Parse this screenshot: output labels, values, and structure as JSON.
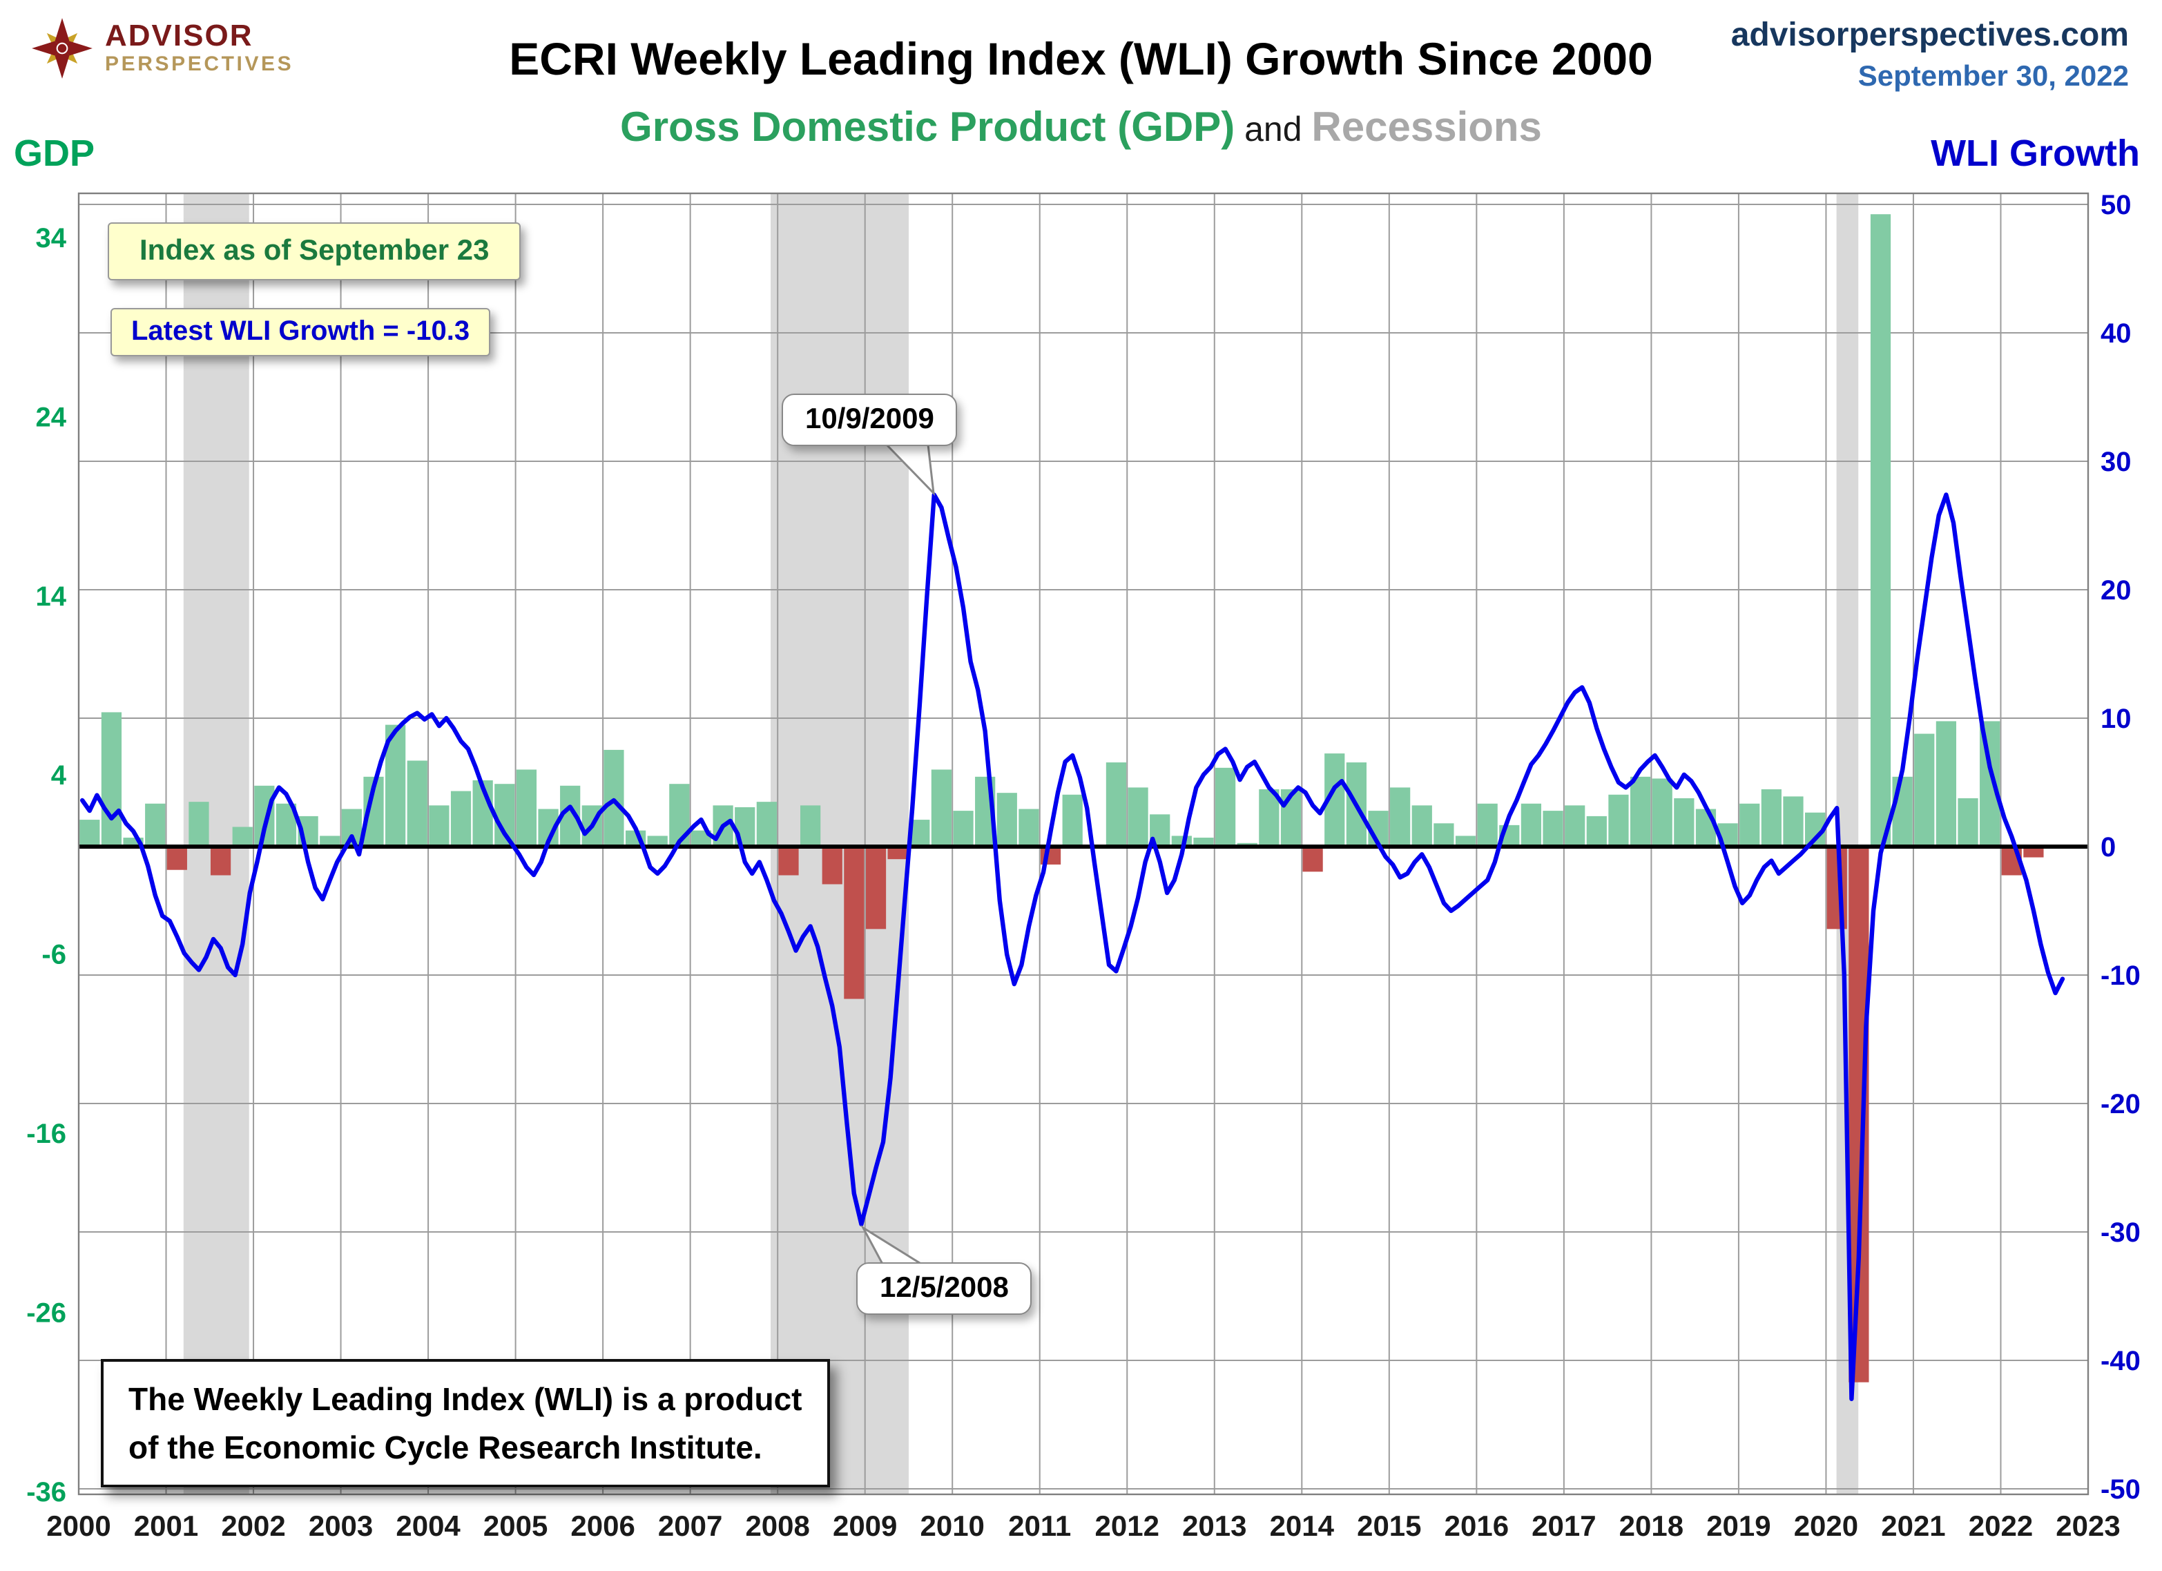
{
  "header": {
    "title": "ECRI Weekly Leading Index (WLI) Growth Since 2000",
    "subtitle_gdp": "Gross Domestic Product (GDP)",
    "subtitle_and": " and ",
    "subtitle_recessions": "Recessions",
    "site": "advisorperspectives.com",
    "date": "September 30, 2022",
    "logo_line1": "ADVISOR",
    "logo_line2": "PERSPECTIVES"
  },
  "axes": {
    "left_label": "GDP",
    "right_label": "WLI Growth",
    "gdp_ticks": [
      34,
      24,
      14,
      4,
      -6,
      -16,
      -26,
      -36
    ],
    "wli_ticks": [
      50,
      40,
      30,
      20,
      10,
      0,
      -10,
      -20,
      -30,
      -40,
      -50
    ],
    "year_ticks": [
      2000,
      2001,
      2002,
      2003,
      2004,
      2005,
      2006,
      2007,
      2008,
      2009,
      2010,
      2011,
      2012,
      2013,
      2014,
      2015,
      2016,
      2017,
      2018,
      2019,
      2020,
      2021,
      2022,
      2023
    ]
  },
  "annotations": {
    "index_note": "Index as of September 23",
    "latest_note": "Latest WLI Growth = -10.3",
    "peak_label": "10/9/2009",
    "trough_label": "12/5/2008",
    "footnote_line1": "The Weekly Leading Index (WLI) is a product",
    "footnote_line2": "of the Economic Cycle Research Institute."
  },
  "colors": {
    "gdp_green_text": "#00a25a",
    "subtitle_green": "#2ba05e",
    "recessions_gray": "#a8a8a8",
    "wli_blue_text": "#0000cc",
    "bar_green": "#82cba4",
    "bar_red": "#c0504d",
    "line_blue": "#0000ee",
    "recession_band": "#d9d9d9",
    "gridline": "#9c9c9c",
    "plot_border": "#7f7f7f",
    "zero_line": "#000000",
    "note_bg": "#ffffcc",
    "note_index_text": "#1b7a3e",
    "note_latest_text": "#0000cc",
    "year_label": "#1a1a1a"
  },
  "chart_data": {
    "type": "combo",
    "title": "ECRI Weekly Leading Index (WLI) Growth Since 2000",
    "subtitle": "Gross Domestic Product (GDP) and Recessions",
    "x_range": [
      2000,
      2023
    ],
    "left_axis": {
      "label": "GDP",
      "range": [
        -36,
        34
      ],
      "ticks": [
        34,
        24,
        14,
        4,
        -6,
        -16,
        -26,
        -36
      ]
    },
    "right_axis": {
      "label": "WLI Growth",
      "range": [
        -50,
        50
      ],
      "ticks": [
        50,
        40,
        30,
        20,
        10,
        0,
        -10,
        -20,
        -30,
        -40,
        -50
      ]
    },
    "grid": true,
    "recessions": [
      {
        "start": 2001.2,
        "end": 2001.95
      },
      {
        "start": 2007.92,
        "end": 2009.5
      },
      {
        "start": 2020.12,
        "end": 2020.37
      }
    ],
    "gdp_bars": {
      "type": "bar",
      "start_year": 2000,
      "interval_years": 0.25,
      "values": [
        1.5,
        7.5,
        0.5,
        2.4,
        -1.3,
        2.5,
        -1.6,
        1.1,
        3.4,
        2.4,
        1.7,
        0.6,
        2.1,
        3.9,
        6.8,
        4.8,
        2.3,
        3.1,
        3.7,
        3.5,
        4.3,
        2.1,
        3.4,
        2.3,
        5.4,
        0.9,
        0.6,
        3.5,
        0.9,
        2.3,
        2.2,
        2.5,
        -1.6,
        2.3,
        -2.1,
        -8.5,
        -4.6,
        -0.7,
        1.5,
        4.3,
        2.0,
        3.9,
        3.0,
        2.1,
        -1.0,
        2.9,
        -0.1,
        4.7,
        3.3,
        1.8,
        0.6,
        0.5,
        4.4,
        0.2,
        3.2,
        3.2,
        -1.4,
        5.2,
        4.7,
        2.0,
        3.3,
        2.3,
        1.3,
        0.6,
        2.4,
        1.2,
        2.4,
        2.0,
        2.3,
        1.7,
        2.9,
        3.9,
        3.8,
        2.7,
        2.1,
        1.3,
        2.4,
        3.2,
        2.8,
        1.9,
        -4.6,
        -29.9,
        35.3,
        3.9,
        6.3,
        7.0,
        2.7,
        7.0,
        -1.6,
        -0.6
      ]
    },
    "wli_line": {
      "type": "line",
      "start_year": 2000,
      "interval_months": 1,
      "latest_value": -10.3,
      "values": [
        3.6,
        2.8,
        4.0,
        3.0,
        2.2,
        2.8,
        1.8,
        1.2,
        0.2,
        -1.5,
        -3.8,
        -5.4,
        -5.8,
        -7.0,
        -8.3,
        -9.0,
        -9.6,
        -8.6,
        -7.2,
        -7.9,
        -9.4,
        -10.0,
        -7.6,
        -3.6,
        -1.2,
        1.4,
        3.6,
        4.6,
        4.1,
        3.0,
        1.4,
        -1.2,
        -3.2,
        -4.1,
        -2.6,
        -1.2,
        -0.2,
        0.8,
        -0.6,
        2.2,
        4.6,
        6.6,
        8.2,
        9.0,
        9.6,
        10.1,
        10.4,
        9.9,
        10.3,
        9.4,
        10.0,
        9.2,
        8.2,
        7.6,
        6.2,
        4.6,
        3.2,
        2.0,
        1.0,
        0.2,
        -0.6,
        -1.6,
        -2.2,
        -1.2,
        0.4,
        1.6,
        2.6,
        3.1,
        2.2,
        1.0,
        1.6,
        2.6,
        3.2,
        3.6,
        3.0,
        2.4,
        1.4,
        0.0,
        -1.6,
        -2.1,
        -1.5,
        -0.6,
        0.4,
        1.0,
        1.6,
        2.1,
        1.0,
        0.6,
        1.6,
        2.0,
        1.0,
        -1.2,
        -2.1,
        -1.2,
        -2.6,
        -4.2,
        -5.2,
        -6.6,
        -8.1,
        -7.0,
        -6.2,
        -7.8,
        -10.2,
        -12.4,
        -15.6,
        -21.5,
        -27.0,
        -29.4,
        -27.2,
        -25.0,
        -23.0,
        -18.0,
        -11.0,
        -4.0,
        3.0,
        11.0,
        19.5,
        27.4,
        26.4,
        24.0,
        21.8,
        18.6,
        14.4,
        12.2,
        9.0,
        2.8,
        -4.2,
        -8.4,
        -10.7,
        -9.2,
        -6.2,
        -3.8,
        -2.0,
        1.2,
        4.2,
        6.6,
        7.1,
        5.4,
        3.0,
        -1.2,
        -5.2,
        -9.2,
        -9.7,
        -8.0,
        -6.2,
        -4.0,
        -1.2,
        0.6,
        -1.2,
        -3.6,
        -2.6,
        -0.6,
        2.2,
        4.6,
        5.6,
        6.2,
        7.2,
        7.6,
        6.6,
        5.2,
        6.2,
        6.6,
        5.6,
        4.6,
        4.0,
        3.2,
        4.0,
        4.6,
        4.2,
        3.2,
        2.6,
        3.6,
        4.6,
        5.1,
        4.2,
        3.2,
        2.2,
        1.2,
        0.2,
        -0.8,
        -1.4,
        -2.4,
        -2.1,
        -1.2,
        -0.6,
        -1.6,
        -3.0,
        -4.4,
        -5.0,
        -4.6,
        -4.1,
        -3.6,
        -3.1,
        -2.6,
        -1.2,
        0.8,
        2.4,
        3.6,
        5.0,
        6.4,
        7.1,
        8.0,
        9.0,
        10.1,
        11.2,
        12.0,
        12.4,
        11.2,
        9.2,
        7.6,
        6.2,
        5.0,
        4.6,
        5.1,
        6.0,
        6.6,
        7.1,
        6.2,
        5.2,
        4.6,
        5.6,
        5.1,
        4.2,
        3.1,
        2.0,
        0.6,
        -1.2,
        -3.1,
        -4.4,
        -3.8,
        -2.6,
        -1.6,
        -1.1,
        -2.1,
        -1.6,
        -1.1,
        -0.6,
        0.0,
        0.6,
        1.2,
        2.2,
        3.0,
        -10.0,
        -43.0,
        -32.0,
        -14.0,
        -5.0,
        -0.5,
        1.5,
        3.5,
        6.0,
        10.0,
        14.5,
        18.5,
        22.5,
        25.8,
        27.4,
        25.2,
        21.0,
        17.0,
        13.0,
        9.2,
        6.2,
        4.1,
        2.2,
        0.8,
        -0.9,
        -2.6,
        -5.0,
        -7.6,
        -9.8,
        -11.4,
        -10.3
      ]
    },
    "callouts": [
      {
        "label": "10/9/2009",
        "x": 2009.79,
        "y": 27.4
      },
      {
        "label": "12/5/2008",
        "x": 2008.92,
        "y": -29.4
      }
    ]
  }
}
